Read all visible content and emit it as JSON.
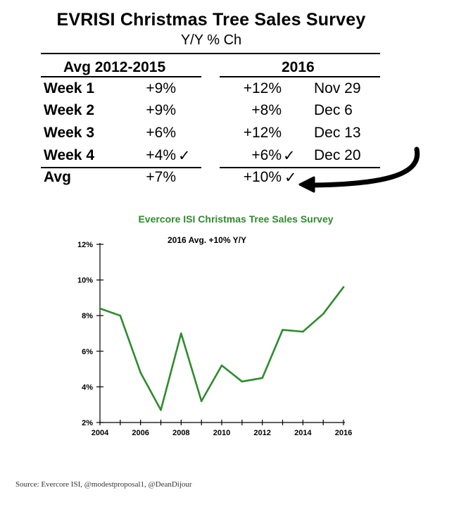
{
  "table": {
    "title": "EVRISI Christmas Tree Sales Survey",
    "subtitle": "Y/Y % Ch",
    "group_left": "Avg 2012-2015",
    "group_right": "2016",
    "check_mark": "✓",
    "rows": [
      {
        "label": "Week 1",
        "avg": "+9%",
        "y2016": "+12%",
        "date": "Nov 29"
      },
      {
        "label": "Week 2",
        "avg": "+9%",
        "y2016": "+8%",
        "date": "Dec 6"
      },
      {
        "label": "Week 3",
        "avg": "+6%",
        "y2016": "+12%",
        "date": "Dec 13"
      },
      {
        "label": "Week 4",
        "avg": "+4%",
        "y2016": "+6%",
        "date": "Dec 20"
      },
      {
        "label": "Avg",
        "avg": "+7%",
        "y2016": "+10%",
        "date": ""
      }
    ]
  },
  "chart_data": {
    "type": "line",
    "title": "Evercore ISI Christmas Tree Sales Survey",
    "subtitle": "2016 Avg. +10% Y/Y",
    "xlabel": "",
    "ylabel": "",
    "x": [
      2004,
      2005,
      2006,
      2007,
      2008,
      2009,
      2010,
      2011,
      2012,
      2013,
      2014,
      2015,
      2016
    ],
    "series": [
      {
        "values": [
          8.4,
          8.0,
          4.8,
          2.7,
          7.0,
          3.2,
          5.2,
          4.3,
          4.5,
          7.2,
          7.1,
          8.1,
          9.6
        ]
      }
    ],
    "xticks": [
      "2004",
      "2006",
      "2008",
      "2010",
      "2012",
      "2014",
      "2016"
    ],
    "yticks": [
      "2%",
      "4%",
      "6%",
      "8%",
      "10%",
      "12%"
    ],
    "xlim": [
      2004,
      2016
    ],
    "ylim": [
      2,
      12
    ],
    "grid": false,
    "line_color": "#2e8b2e"
  },
  "source": "Source: Evercore ISI, @modestproposal1, @DeanDijour"
}
